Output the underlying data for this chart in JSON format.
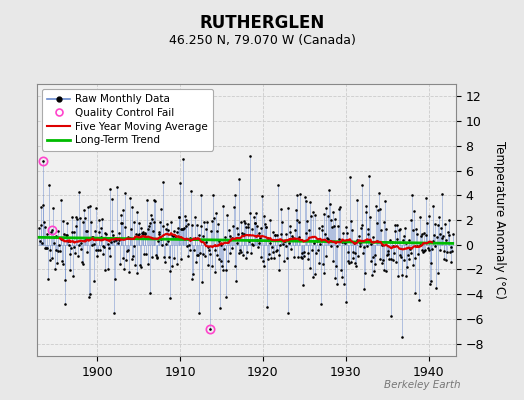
{
  "title": "RUTHERGLEN",
  "subtitle": "46.250 N, 79.070 W (Canada)",
  "ylabel": "Temperature Anomaly (°C)",
  "watermark": "Berkeley Earth",
  "year_start": 1893,
  "year_end": 1943,
  "ylim": [
    -9,
    13
  ],
  "yticks": [
    -8,
    -6,
    -4,
    -2,
    0,
    2,
    4,
    6,
    8,
    10,
    12
  ],
  "xticks": [
    1900,
    1910,
    1920,
    1930,
    1940
  ],
  "bg_color": "#e8e8e8",
  "plot_bg_color": "#f0f0f0",
  "line_color": "#6688cc",
  "dot_color": "#000000",
  "ma_color": "#dd0000",
  "trend_color": "#00bb00",
  "qc_color": "#ff44cc",
  "seed": 42,
  "qc_fail_indices": [
    5,
    19,
    248
  ],
  "figsize": [
    5.24,
    4.0
  ],
  "dpi": 100
}
